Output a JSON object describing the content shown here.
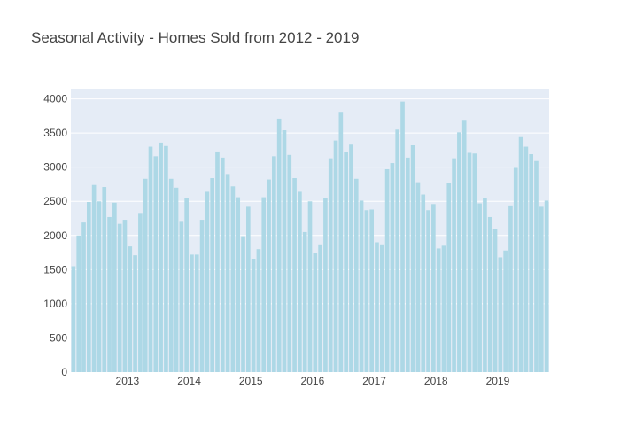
{
  "chart_data": {
    "type": "bar",
    "title": "Seasonal Activity - Homes Sold from 2012 - 2019",
    "xlabel": "",
    "ylabel": "",
    "start": "2012-02",
    "values": [
      1550,
      2000,
      2190,
      2490,
      2740,
      2500,
      2710,
      2270,
      2480,
      2170,
      2230,
      1840,
      1710,
      2330,
      2830,
      3300,
      3160,
      3360,
      3310,
      2830,
      2700,
      2200,
      2550,
      1720,
      1720,
      2230,
      2640,
      2840,
      3230,
      3140,
      2900,
      2720,
      2560,
      1990,
      2420,
      1660,
      1800,
      2560,
      2820,
      3160,
      3710,
      3540,
      3180,
      2840,
      2640,
      2050,
      2500,
      1740,
      1870,
      2550,
      3130,
      3390,
      3810,
      3220,
      3330,
      2830,
      2510,
      2370,
      2380,
      1900,
      1870,
      2970,
      3060,
      3550,
      3960,
      3140,
      3320,
      2780,
      2600,
      2370,
      2460,
      1810,
      1850,
      2770,
      3130,
      3510,
      3680,
      3210,
      3200,
      2470,
      2550,
      2270,
      2100,
      1680,
      1780,
      2440,
      2990,
      3440,
      3300,
      3190,
      3090,
      2420,
      2510
    ],
    "xticks": [
      "2013",
      "2014",
      "2015",
      "2016",
      "2017",
      "2018",
      "2019"
    ],
    "yticks": [
      0,
      500,
      1000,
      1500,
      2000,
      2500,
      3000,
      3500,
      4000
    ],
    "ylim": [
      0,
      4150
    ],
    "grid": true,
    "colors": {
      "bar": "#add8e6",
      "plot_bg": "#e5ecf6",
      "grid": "#ffffff"
    }
  }
}
